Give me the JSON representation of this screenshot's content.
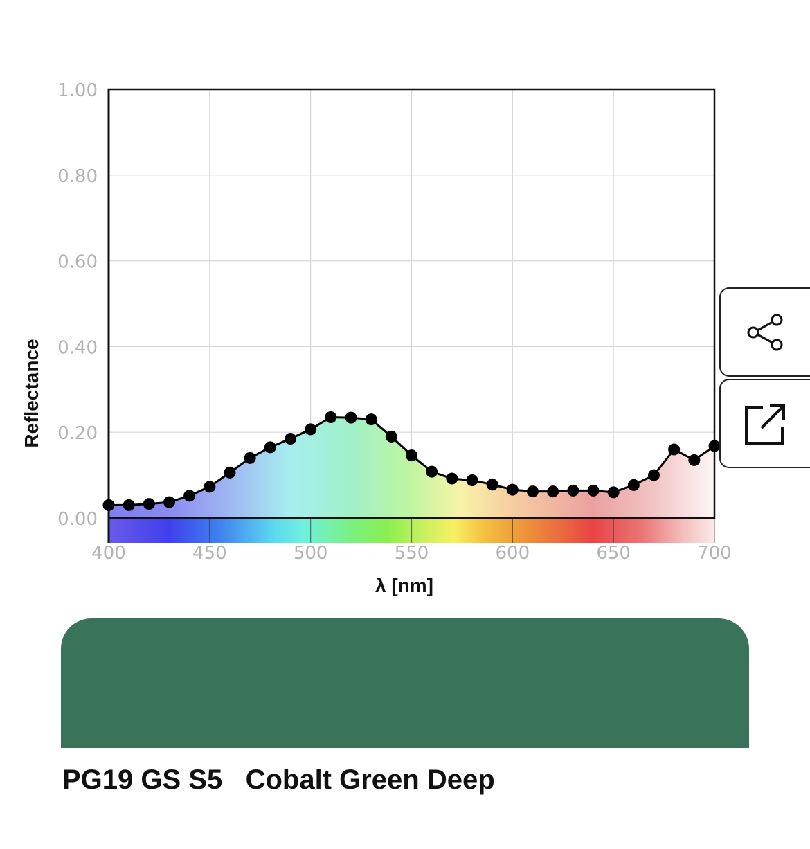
{
  "chart_data": {
    "type": "line",
    "xlabel": "λ [nm]",
    "ylabel": "Reflectance",
    "xlim": [
      400,
      700
    ],
    "ylim": [
      0,
      1
    ],
    "x_ticks": [
      "400",
      "450",
      "500",
      "550",
      "600",
      "650",
      "700"
    ],
    "y_ticks": [
      "0.00",
      "0.20",
      "0.40",
      "0.60",
      "0.80",
      "1.00"
    ],
    "grid": true,
    "area_fill": "visible spectrum gradient",
    "spectrum_band": "visible spectrum",
    "series": [
      {
        "x": [
          400,
          410,
          420,
          430,
          440,
          450,
          460,
          470,
          480,
          490,
          500,
          510,
          520,
          530,
          540,
          550,
          560,
          570,
          580,
          590,
          600,
          610,
          620,
          630,
          640,
          650,
          660,
          670,
          680,
          690,
          700
        ],
        "values": [
          0.03,
          0.03,
          0.033,
          0.037,
          0.052,
          0.073,
          0.106,
          0.14,
          0.165,
          0.185,
          0.207,
          0.235,
          0.234,
          0.23,
          0.19,
          0.146,
          0.108,
          0.092,
          0.088,
          0.078,
          0.066,
          0.062,
          0.062,
          0.064,
          0.064,
          0.06,
          0.077,
          0.1,
          0.16,
          0.135,
          0.168
        ]
      }
    ]
  },
  "colors": {
    "swatch": "#38735a",
    "line": "#000000",
    "grid": "#d6d6d6",
    "tick_text": "#b3b3b3"
  },
  "actions": {
    "share_icon": "share-icon",
    "export_icon": "external-link-icon"
  },
  "pigment": {
    "label": "PG19 GS S5   Cobalt Green Deep"
  }
}
